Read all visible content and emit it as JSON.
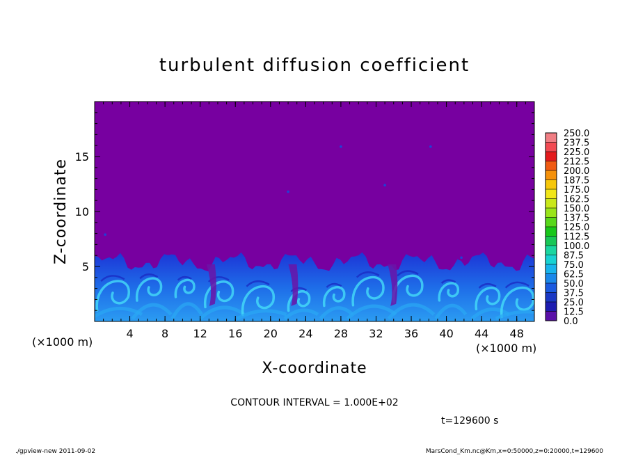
{
  "chart_data": {
    "type": "heatmap",
    "title": "turbulent diffusion coefficient",
    "xlabel": "X-coordinate",
    "ylabel": "Z-coordinate",
    "x_units": "(×1000 m)",
    "y_units": "(×1000 m)",
    "x_ticks": [
      "4",
      "8",
      "12",
      "16",
      "20",
      "24",
      "28",
      "32",
      "36",
      "40",
      "44",
      "48"
    ],
    "y_ticks": [
      "5",
      "10",
      "15"
    ],
    "xlim": [
      0,
      50
    ],
    "ylim": [
      0,
      20
    ],
    "colorbar": {
      "levels": [
        "250.0",
        "237.5",
        "225.0",
        "212.5",
        "200.0",
        "187.5",
        "175.0",
        "162.5",
        "150.0",
        "137.5",
        "125.0",
        "112.5",
        "100.0",
        "87.5",
        "75.0",
        "62.5",
        "50.0",
        "37.5",
        "25.0",
        "12.5",
        "0.0"
      ],
      "colors": [
        "#f07e84",
        "#f24a52",
        "#e41a1c",
        "#f05a12",
        "#f5910a",
        "#f6c70a",
        "#f1e618",
        "#c9e81a",
        "#9ae51a",
        "#58d81a",
        "#18c71a",
        "#18c756",
        "#1ad6a0",
        "#18d2d2",
        "#18b4ec",
        "#1a88ea",
        "#1a5ae0",
        "#1a38c4",
        "#1d1cb0",
        "#5a10a8"
      ]
    },
    "background_value": "0.0",
    "turbulent_layer_top_km": 6
  },
  "contour_interval": "CONTOUR INTERVAL = 1.000E+02",
  "time_label": "t=129600  s",
  "footer_left": "./gpview-new   2011-09-02",
  "footer_right": "MarsCond_Km.nc@Km,x=0:50000,z=0:20000,t=129600",
  "colors": {
    "background_field": "#7700a0",
    "plume_dark": "#1d2dd0",
    "plume_mid": "#1f7af0",
    "plume_light": "#3cd4f6"
  }
}
